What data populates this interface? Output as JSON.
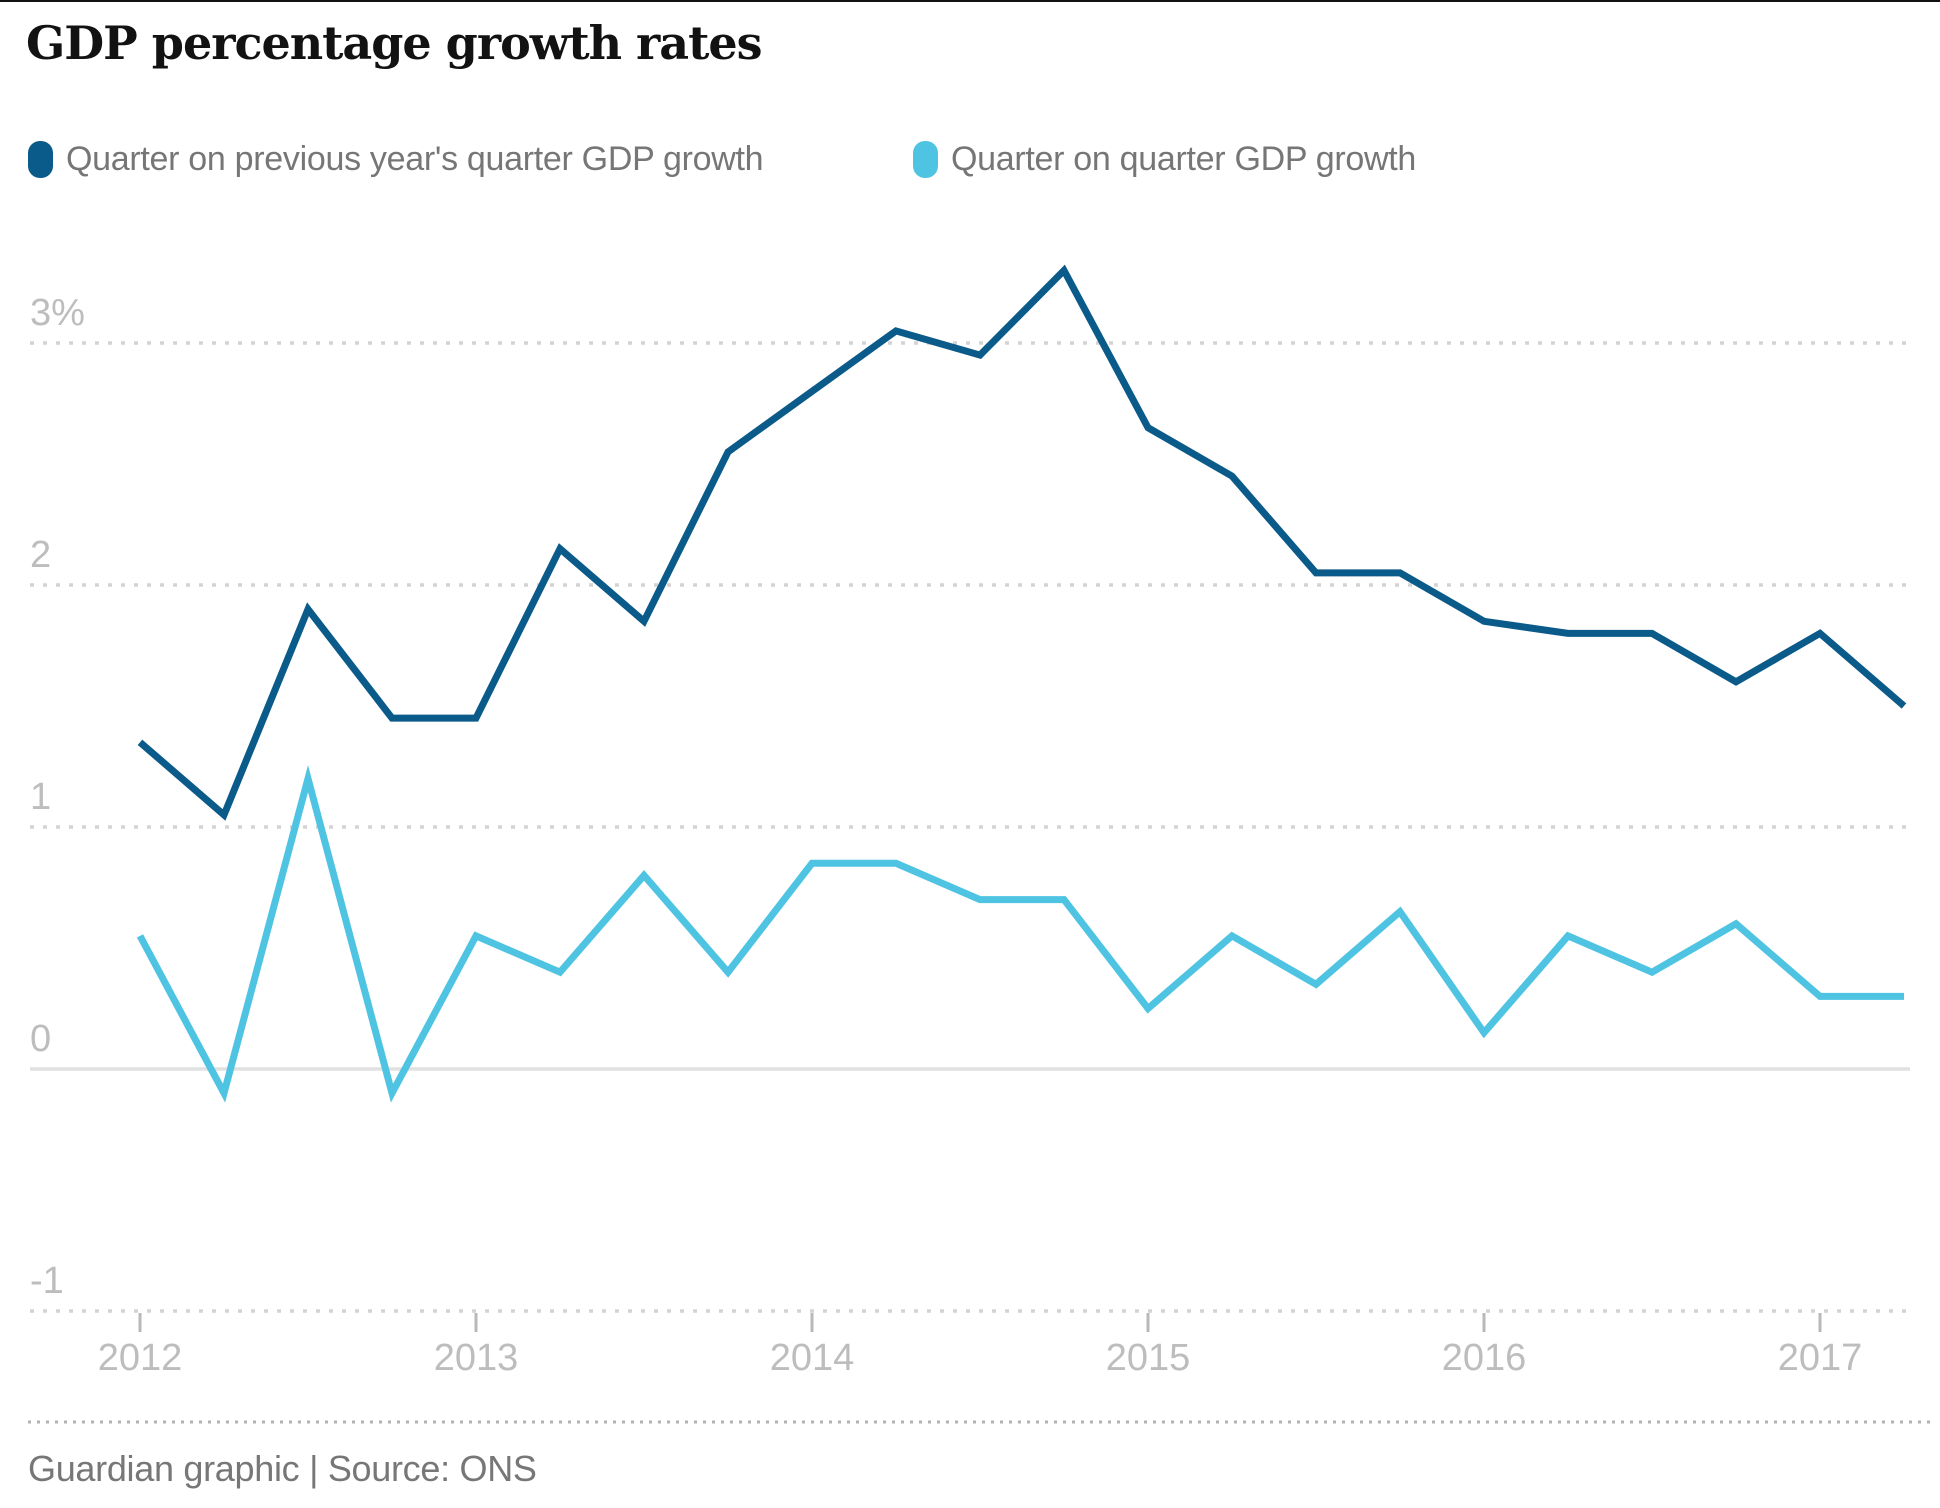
{
  "title": "GDP percentage growth rates",
  "legend": [
    {
      "label": "Quarter on previous year's quarter GDP growth",
      "color": "#0a5a8a"
    },
    {
      "label": "Quarter on quarter GDP growth",
      "color": "#4ec4e2"
    }
  ],
  "footer": "Guardian graphic | Source: ONS",
  "chart_data": {
    "type": "line",
    "x": [
      "2012 Q1",
      "2012 Q2",
      "2012 Q3",
      "2012 Q4",
      "2013 Q1",
      "2013 Q2",
      "2013 Q3",
      "2013 Q4",
      "2014 Q1",
      "2014 Q2",
      "2014 Q3",
      "2014 Q4",
      "2015 Q1",
      "2015 Q2",
      "2015 Q3",
      "2015 Q4",
      "2016 Q1",
      "2016 Q2",
      "2016 Q3",
      "2016 Q4",
      "2017 Q1",
      "2017 Q2"
    ],
    "series": [
      {
        "name": "Quarter on previous year's quarter GDP growth",
        "color": "#0a5a8a",
        "values": [
          1.35,
          1.05,
          1.9,
          1.45,
          1.45,
          2.15,
          1.85,
          2.55,
          2.8,
          3.05,
          2.95,
          3.3,
          2.65,
          2.45,
          2.05,
          2.05,
          1.85,
          1.8,
          1.8,
          1.6,
          1.8,
          1.5
        ]
      },
      {
        "name": "Quarter on quarter GDP growth",
        "color": "#4ec4e2",
        "values": [
          0.55,
          -0.1,
          1.2,
          -0.1,
          0.55,
          0.4,
          0.8,
          0.4,
          0.85,
          0.85,
          0.7,
          0.7,
          0.25,
          0.55,
          0.35,
          0.65,
          0.15,
          0.55,
          0.4,
          0.6,
          0.3,
          0.3
        ]
      }
    ],
    "yticks": [
      {
        "label": "3%",
        "value": 3
      },
      {
        "label": "2",
        "value": 2
      },
      {
        "label": "1",
        "value": 1
      },
      {
        "label": "0",
        "value": 0
      },
      {
        "label": "-1",
        "value": -1
      }
    ],
    "xticks": [
      {
        "label": "2012",
        "index": 0
      },
      {
        "label": "2013",
        "index": 4
      },
      {
        "label": "2014",
        "index": 8
      },
      {
        "label": "2015",
        "index": 12
      },
      {
        "label": "2016",
        "index": 16
      },
      {
        "label": "2017",
        "index": 20
      }
    ],
    "title": "GDP percentage growth rates",
    "xlabel": "",
    "ylabel": "",
    "ylim": [
      -1.35,
      3.55
    ],
    "grid": "horizontal-dotted",
    "legend_position": "top",
    "zero_baseline": true
  }
}
